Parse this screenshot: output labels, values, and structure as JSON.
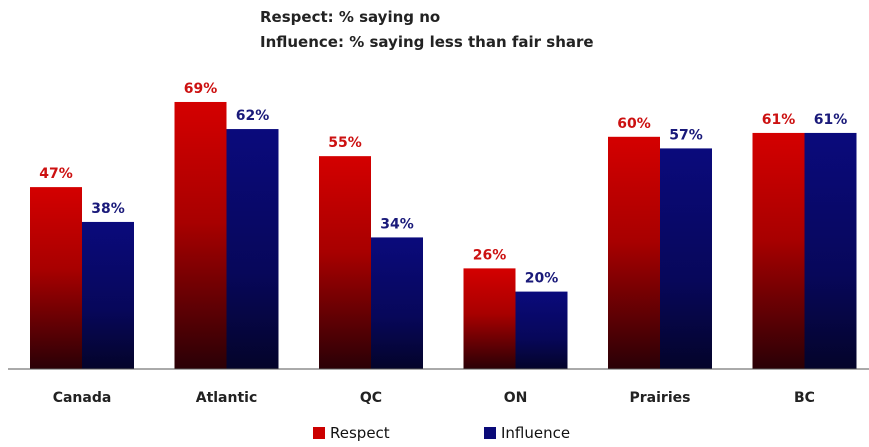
{
  "chart_data": {
    "type": "bar",
    "title_lines": [
      "Respect: % saying no",
      "Influence: % saying less than fair share"
    ],
    "categories": [
      "Canada",
      "Atlantic",
      "QC",
      "ON",
      "Prairies",
      "BC"
    ],
    "series": [
      {
        "name": "Respect",
        "values": [
          47,
          69,
          55,
          26,
          60,
          61
        ],
        "labels": [
          "47%",
          "69%",
          "55%",
          "26%",
          "60%",
          "61%"
        ],
        "color": "#cc0000",
        "label_color": "#cc1111"
      },
      {
        "name": "Influence",
        "values": [
          38,
          62,
          34,
          20,
          57,
          61
        ],
        "labels": [
          "38%",
          "62%",
          "34%",
          "20%",
          "57%",
          "61%"
        ],
        "color": "#0a0a78",
        "label_color": "#1a1a7a"
      }
    ],
    "ylim": [
      0,
      75
    ],
    "grid": false,
    "legend_position": "bottom-center"
  }
}
